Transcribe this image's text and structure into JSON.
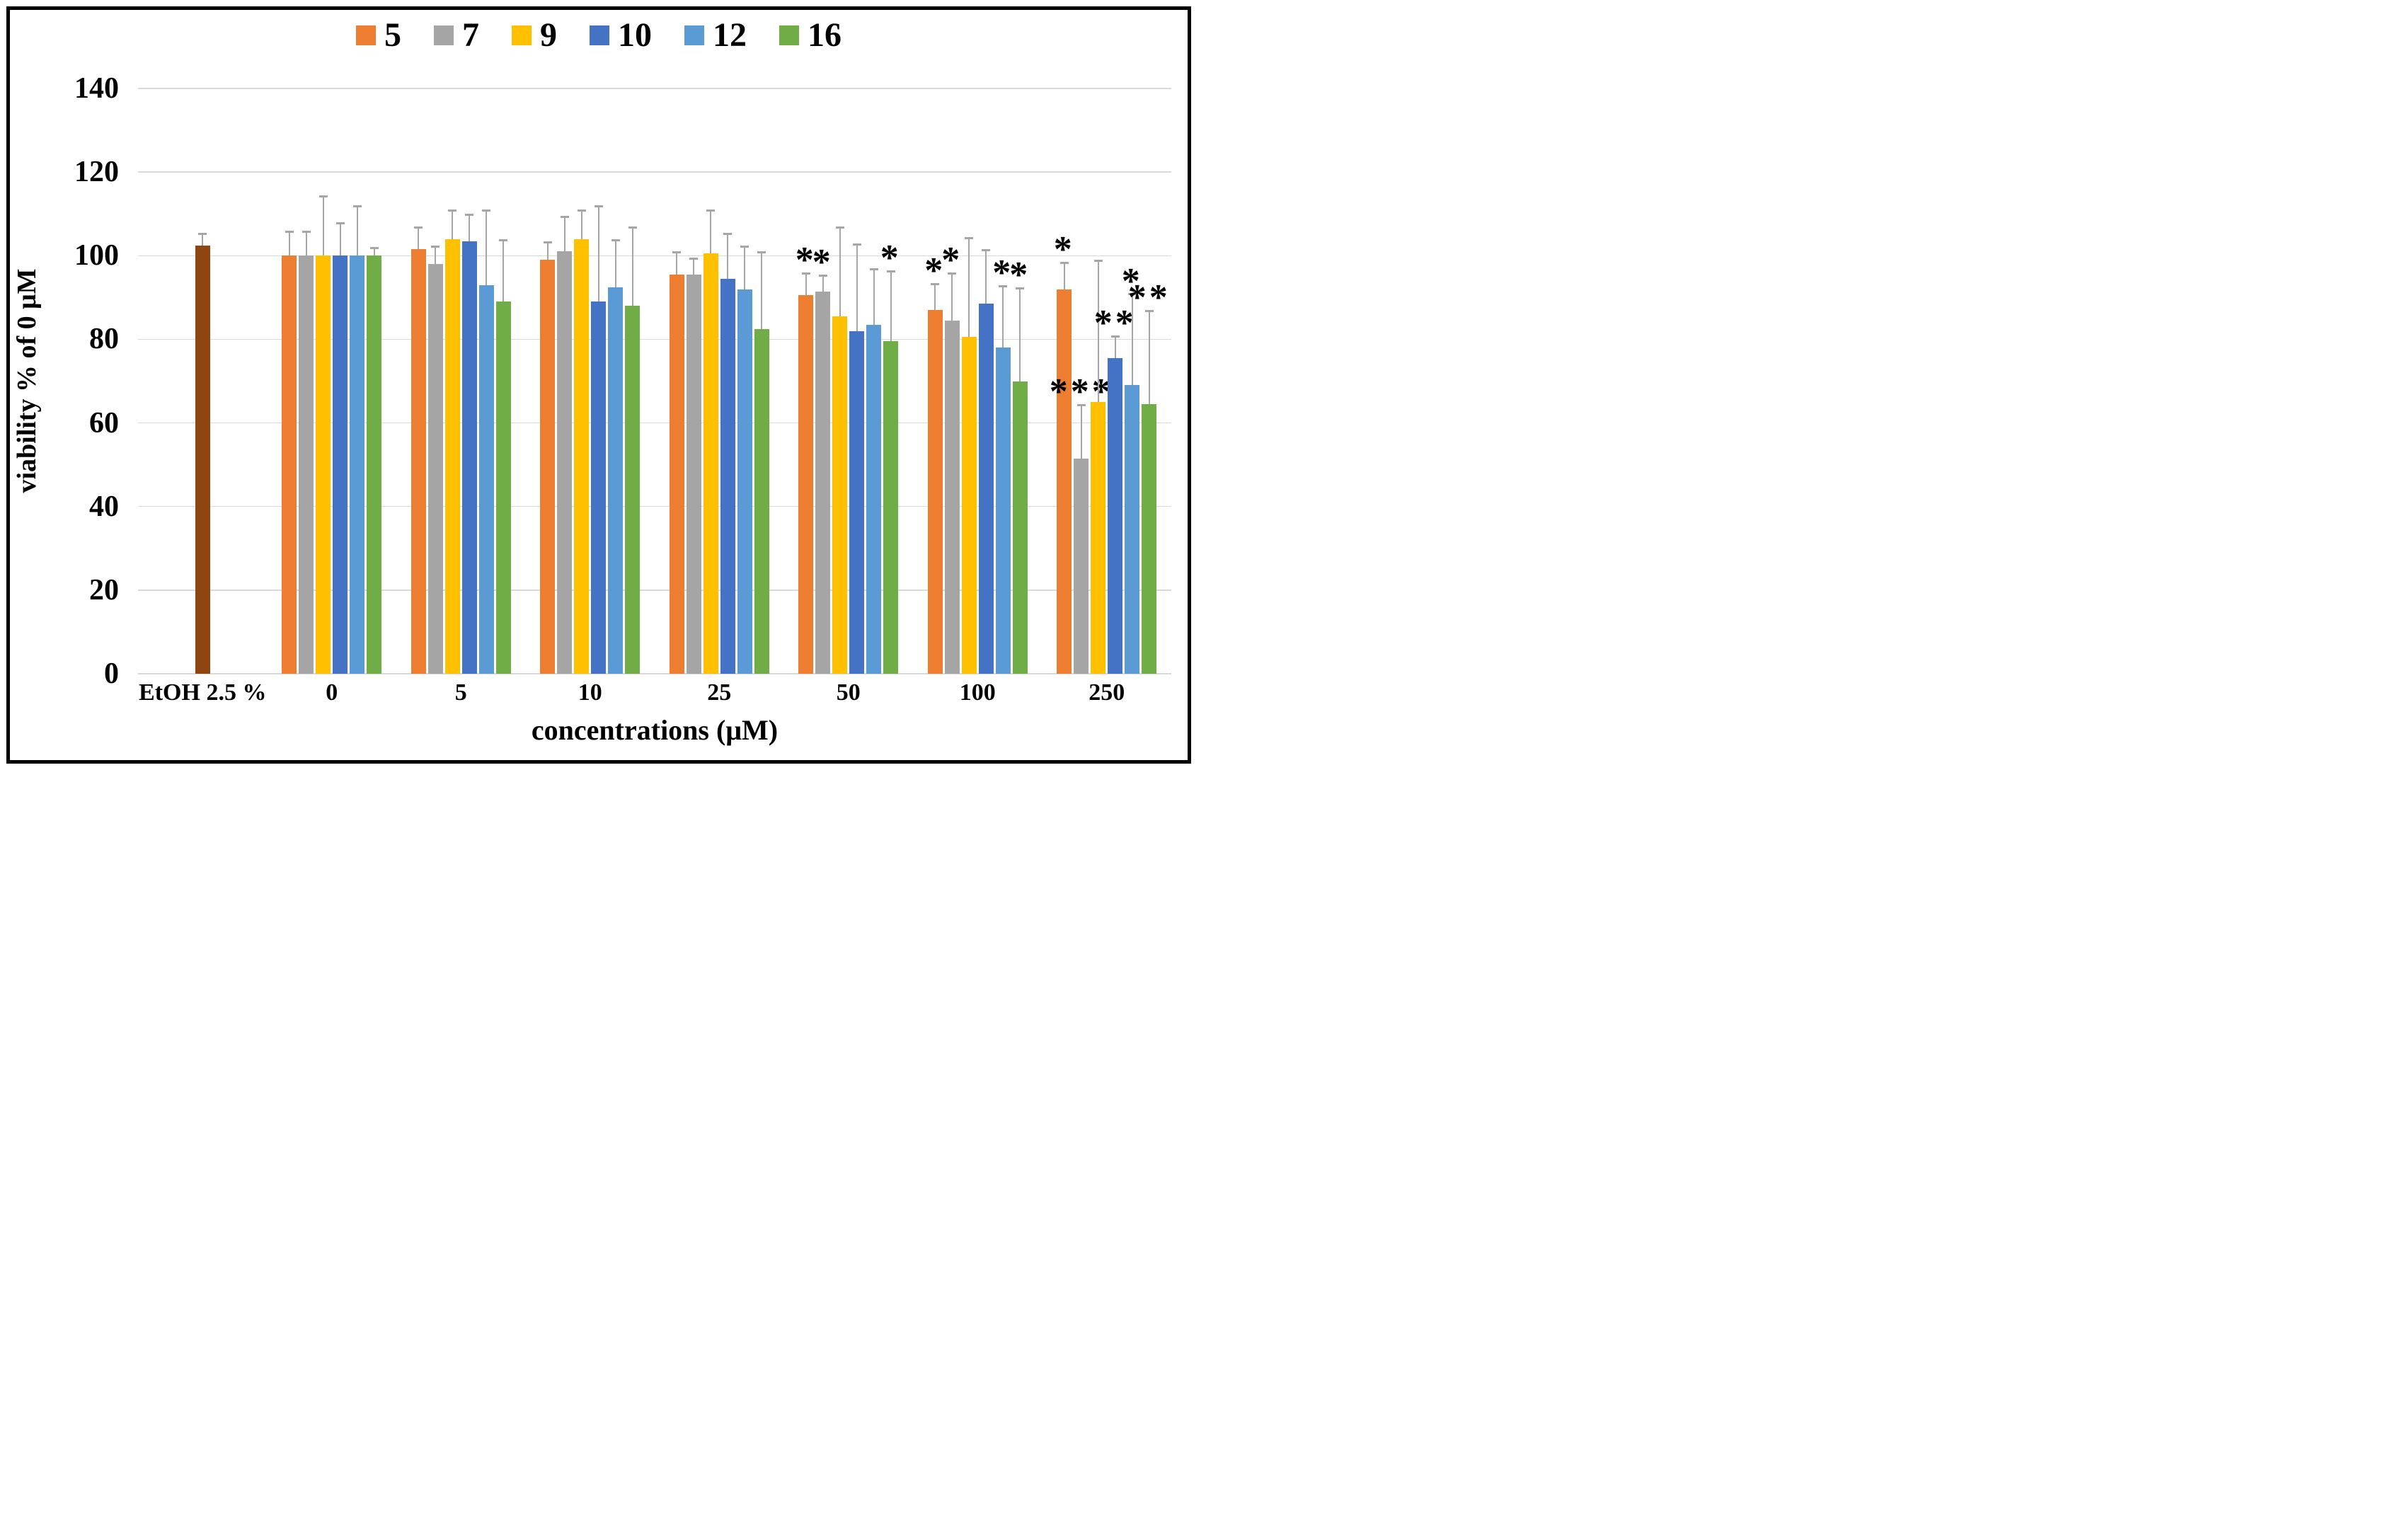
{
  "chart_data": {
    "type": "bar",
    "title": "",
    "xlabel": "concentrations (μM)",
    "ylabel": "viability % of 0 μM",
    "ylim": [
      0,
      140
    ],
    "ytick_step": 20,
    "yticks": [
      "0",
      "20",
      "40",
      "60",
      "80",
      "100",
      "120",
      "140"
    ],
    "grid": "horizontal",
    "legend_position": "top-center",
    "grid_color": "#d9d9d9",
    "error_bar_color": "#a6a6a6",
    "legend": [
      {
        "label": "5",
        "color": "#ED7D31"
      },
      {
        "label": "7",
        "color": "#A5A5A5"
      },
      {
        "label": "9",
        "color": "#FFC000"
      },
      {
        "label": "10",
        "color": "#4472C4"
      },
      {
        "label": "12",
        "color": "#5B9BD5"
      },
      {
        "label": "16",
        "color": "#70AD47"
      }
    ],
    "groups": [
      {
        "category": "EtOH 2.5 %",
        "bars": [
          {
            "series": "EtOH",
            "color": "#8F4510",
            "value": 102.5,
            "error": 3,
            "sig": ""
          }
        ]
      },
      {
        "category": "0",
        "bars": [
          {
            "series": "5",
            "color": "#ED7D31",
            "value": 100,
            "error": 6,
            "sig": ""
          },
          {
            "series": "7",
            "color": "#A5A5A5",
            "value": 100,
            "error": 6,
            "sig": ""
          },
          {
            "series": "9",
            "color": "#FFC000",
            "value": 100,
            "error": 14.5,
            "sig": ""
          },
          {
            "series": "10",
            "color": "#4472C4",
            "value": 100,
            "error": 8,
            "sig": ""
          },
          {
            "series": "12",
            "color": "#5B9BD5",
            "value": 100,
            "error": 12,
            "sig": ""
          },
          {
            "series": "16",
            "color": "#70AD47",
            "value": 100,
            "error": 2,
            "sig": ""
          }
        ]
      },
      {
        "category": "5",
        "bars": [
          {
            "series": "5",
            "color": "#ED7D31",
            "value": 101.5,
            "error": 5.5,
            "sig": ""
          },
          {
            "series": "7",
            "color": "#A5A5A5",
            "value": 98,
            "error": 4.5,
            "sig": ""
          },
          {
            "series": "9",
            "color": "#FFC000",
            "value": 104,
            "error": 7,
            "sig": ""
          },
          {
            "series": "10",
            "color": "#4472C4",
            "value": 103.5,
            "error": 6.5,
            "sig": ""
          },
          {
            "series": "12",
            "color": "#5B9BD5",
            "value": 93,
            "error": 18,
            "sig": ""
          },
          {
            "series": "16",
            "color": "#70AD47",
            "value": 89,
            "error": 15,
            "sig": ""
          }
        ]
      },
      {
        "category": "10",
        "bars": [
          {
            "series": "5",
            "color": "#ED7D31",
            "value": 99,
            "error": 4.5,
            "sig": ""
          },
          {
            "series": "7",
            "color": "#A5A5A5",
            "value": 101,
            "error": 8.5,
            "sig": ""
          },
          {
            "series": "9",
            "color": "#FFC000",
            "value": 104,
            "error": 7,
            "sig": ""
          },
          {
            "series": "10",
            "color": "#4472C4",
            "value": 89,
            "error": 23,
            "sig": ""
          },
          {
            "series": "12",
            "color": "#5B9BD5",
            "value": 92.5,
            "error": 11.5,
            "sig": ""
          },
          {
            "series": "16",
            "color": "#70AD47",
            "value": 88,
            "error": 19,
            "sig": ""
          }
        ]
      },
      {
        "category": "25",
        "bars": [
          {
            "series": "5",
            "color": "#ED7D31",
            "value": 95.5,
            "error": 5.5,
            "sig": ""
          },
          {
            "series": "7",
            "color": "#A5A5A5",
            "value": 95.5,
            "error": 4,
            "sig": ""
          },
          {
            "series": "9",
            "color": "#FFC000",
            "value": 100.5,
            "error": 10.5,
            "sig": ""
          },
          {
            "series": "10",
            "color": "#4472C4",
            "value": 94.5,
            "error": 11,
            "sig": ""
          },
          {
            "series": "12",
            "color": "#5B9BD5",
            "value": 92,
            "error": 10.5,
            "sig": ""
          },
          {
            "series": "16",
            "color": "#70AD47",
            "value": 82.5,
            "error": 18.5,
            "sig": ""
          }
        ]
      },
      {
        "category": "50",
        "bars": [
          {
            "series": "5",
            "color": "#ED7D31",
            "value": 90.5,
            "error": 5.5,
            "sig": "*"
          },
          {
            "series": "7",
            "color": "#A5A5A5",
            "value": 91.5,
            "error": 4,
            "sig": "*"
          },
          {
            "series": "9",
            "color": "#FFC000",
            "value": 85.5,
            "error": 21.5,
            "sig": ""
          },
          {
            "series": "10",
            "color": "#4472C4",
            "value": 82,
            "error": 21,
            "sig": ""
          },
          {
            "series": "12",
            "color": "#5B9BD5",
            "value": 83.5,
            "error": 13.5,
            "sig": ""
          },
          {
            "series": "16",
            "color": "#70AD47",
            "value": 79.5,
            "error": 17,
            "sig": "*"
          }
        ]
      },
      {
        "category": "100",
        "bars": [
          {
            "series": "5",
            "color": "#ED7D31",
            "value": 87,
            "error": 6.5,
            "sig": "*"
          },
          {
            "series": "7",
            "color": "#A5A5A5",
            "value": 84.5,
            "error": 11.5,
            "sig": "*"
          },
          {
            "series": "9",
            "color": "#FFC000",
            "value": 80.5,
            "error": 24,
            "sig": ""
          },
          {
            "series": "10",
            "color": "#4472C4",
            "value": 88.5,
            "error": 13,
            "sig": ""
          },
          {
            "series": "12",
            "color": "#5B9BD5",
            "value": 78,
            "error": 15,
            "sig": "*"
          },
          {
            "series": "16",
            "color": "#70AD47",
            "value": 70,
            "error": 22.5,
            "sig": "*"
          }
        ]
      },
      {
        "category": "250",
        "bars": [
          {
            "series": "5",
            "color": "#ED7D31",
            "value": 92,
            "error": 6.5,
            "sig": "*"
          },
          {
            "series": "7",
            "color": "#A5A5A5",
            "value": 51.5,
            "error": 13,
            "sig": "***"
          },
          {
            "series": "9",
            "color": "#FFC000",
            "value": 65,
            "error": 34,
            "sig": ""
          },
          {
            "series": "10",
            "color": "#4472C4",
            "value": 75.5,
            "error": 5.5,
            "sig": "**"
          },
          {
            "series": "12",
            "color": "#5B9BD5",
            "value": 69,
            "error": 22,
            "sig": "*"
          },
          {
            "series": "16",
            "color": "#70AD47",
            "value": 64.5,
            "error": 22.5,
            "sig": "**"
          }
        ]
      }
    ]
  }
}
